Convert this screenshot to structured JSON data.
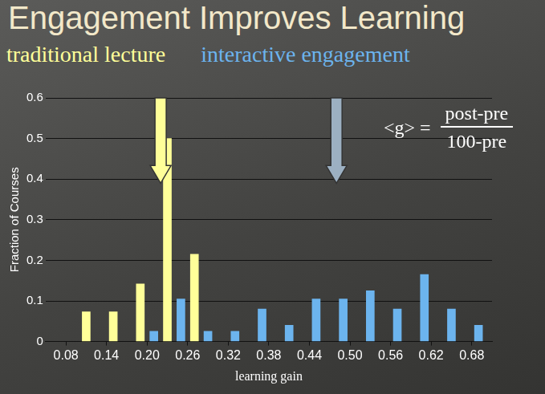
{
  "chart_data": {
    "type": "bar",
    "title": "Engagement Improves Learning",
    "xlabel": "learning gain",
    "ylabel": "Fraction of Courses",
    "series": [
      {
        "name": "traditional lecture",
        "color": "#ffff99",
        "x": [
          0.11,
          0.15,
          0.19,
          0.23,
          0.27
        ],
        "values": [
          0.073,
          0.073,
          0.142,
          0.5,
          0.215
        ]
      },
      {
        "name": "interactive engagement",
        "color": "#6cb4ee",
        "x": [
          0.21,
          0.25,
          0.29,
          0.33,
          0.37,
          0.41,
          0.45,
          0.49,
          0.53,
          0.57,
          0.61,
          0.65,
          0.69
        ],
        "values": [
          0.025,
          0.105,
          0.025,
          0.025,
          0.08,
          0.04,
          0.105,
          0.105,
          0.125,
          0.08,
          0.165,
          0.08,
          0.04
        ]
      }
    ],
    "xlim": [
      0.05,
      0.71
    ],
    "xticks": [
      0.08,
      0.14,
      0.2,
      {
        "value": 0.2,
        "label": "0.20"
      },
      0.26,
      0.32,
      0.38,
      0.44,
      {
        "value": 0.5,
        "label": "0.50"
      },
      0.56,
      0.62,
      0.68
    ],
    "ylim": [
      0,
      0.6
    ],
    "yticks": [
      0,
      0.1,
      0.2,
      0.3,
      0.4,
      0.5,
      0.6
    ],
    "grid": true,
    "annotations": [
      {
        "type": "arrow",
        "x": 0.22,
        "y_start": 0.6,
        "y_end": 0.39,
        "color": "#ffff99"
      },
      {
        "type": "arrow",
        "x": 0.48,
        "y_start": 0.6,
        "y_end": 0.39,
        "color": "#9cb0c2"
      }
    ],
    "formula": {
      "lhs": "<g> =",
      "numerator": "post-pre",
      "denominator": "100-pre"
    }
  }
}
